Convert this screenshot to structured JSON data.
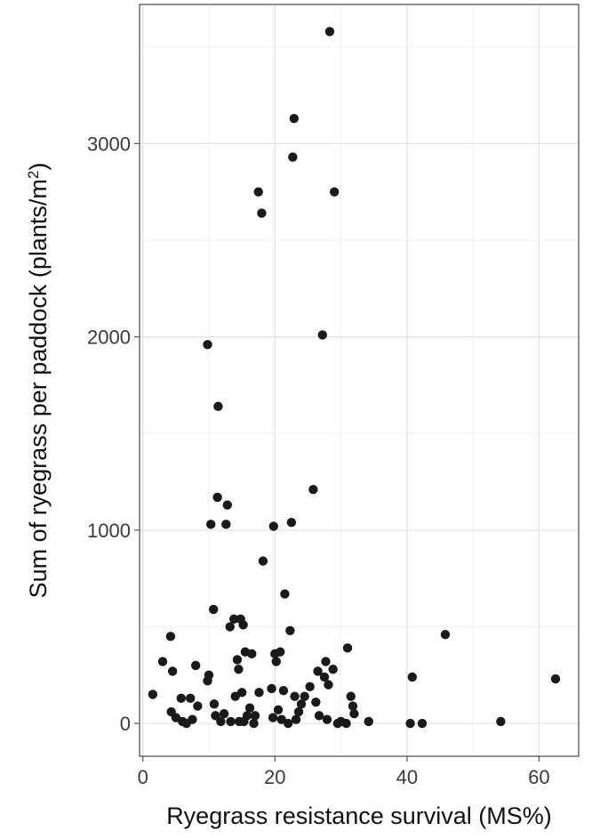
{
  "chart_data": {
    "type": "scatter",
    "xlabel": "Ryegrass resistance survival (MS%)",
    "ylabel_main": "Sum of ryegrass per paddock (plants/m",
    "ylabel_sup": "2",
    "ylabel_end": ")",
    "xlim": [
      -0.5,
      66
    ],
    "ylim": [
      -170,
      3720
    ],
    "xticks": [
      0,
      20,
      40,
      60
    ],
    "xtick_labels": [
      "0",
      "20",
      "40",
      "60"
    ],
    "yticks": [
      0,
      1000,
      2000,
      3000
    ],
    "ytick_labels": [
      "0",
      "1000",
      "2000",
      "3000"
    ],
    "grid": true,
    "legend": "none",
    "point_color": "#1a1a1a",
    "points": [
      [
        1.5,
        150
      ],
      [
        3.0,
        320
      ],
      [
        4.2,
        450
      ],
      [
        4.5,
        270
      ],
      [
        4.3,
        60
      ],
      [
        5.0,
        30
      ],
      [
        5.8,
        130
      ],
      [
        6.0,
        10
      ],
      [
        6.6,
        0
      ],
      [
        7.2,
        130
      ],
      [
        7.5,
        20
      ],
      [
        8.0,
        300
      ],
      [
        8.3,
        90
      ],
      [
        9.8,
        1960
      ],
      [
        9.8,
        220
      ],
      [
        10.0,
        250
      ],
      [
        10.3,
        1030
      ],
      [
        10.7,
        590
      ],
      [
        10.8,
        100
      ],
      [
        11.0,
        40
      ],
      [
        11.3,
        1170
      ],
      [
        11.4,
        1640
      ],
      [
        11.8,
        10
      ],
      [
        12.3,
        50
      ],
      [
        12.6,
        1030
      ],
      [
        12.8,
        1130
      ],
      [
        13.2,
        500
      ],
      [
        13.3,
        10
      ],
      [
        13.8,
        540
      ],
      [
        14.0,
        140
      ],
      [
        14.3,
        330
      ],
      [
        14.5,
        280
      ],
      [
        14.6,
        10
      ],
      [
        14.8,
        540
      ],
      [
        15.0,
        160
      ],
      [
        15.2,
        510
      ],
      [
        15.3,
        10
      ],
      [
        15.5,
        370
      ],
      [
        15.8,
        40
      ],
      [
        16.2,
        80
      ],
      [
        16.5,
        360
      ],
      [
        16.8,
        0
      ],
      [
        17.0,
        40
      ],
      [
        17.5,
        2750
      ],
      [
        17.6,
        160
      ],
      [
        18.0,
        2640
      ],
      [
        18.2,
        840
      ],
      [
        19.5,
        180
      ],
      [
        19.7,
        30
      ],
      [
        19.8,
        1020
      ],
      [
        20.0,
        360
      ],
      [
        20.2,
        320
      ],
      [
        20.5,
        70
      ],
      [
        20.8,
        370
      ],
      [
        21.0,
        20
      ],
      [
        21.3,
        170
      ],
      [
        21.5,
        670
      ],
      [
        22.0,
        0
      ],
      [
        22.3,
        480
      ],
      [
        22.5,
        1040
      ],
      [
        22.7,
        2930
      ],
      [
        22.9,
        3130
      ],
      [
        23.0,
        140
      ],
      [
        23.2,
        20
      ],
      [
        23.6,
        60
      ],
      [
        24.0,
        100
      ],
      [
        24.5,
        140
      ],
      [
        25.3,
        190
      ],
      [
        25.8,
        1210
      ],
      [
        26.2,
        110
      ],
      [
        26.5,
        270
      ],
      [
        26.7,
        40
      ],
      [
        27.2,
        2010
      ],
      [
        27.5,
        240
      ],
      [
        27.7,
        320
      ],
      [
        27.9,
        20
      ],
      [
        28.1,
        200
      ],
      [
        28.3,
        3580
      ],
      [
        28.8,
        280
      ],
      [
        29.0,
        2750
      ],
      [
        29.5,
        0
      ],
      [
        30.0,
        10
      ],
      [
        30.8,
        0
      ],
      [
        31.0,
        390
      ],
      [
        31.5,
        140
      ],
      [
        31.8,
        90
      ],
      [
        32.0,
        50
      ],
      [
        34.2,
        10
      ],
      [
        40.5,
        0
      ],
      [
        40.8,
        240
      ],
      [
        42.3,
        0
      ],
      [
        45.8,
        460
      ],
      [
        54.2,
        10
      ],
      [
        62.5,
        230
      ]
    ]
  }
}
